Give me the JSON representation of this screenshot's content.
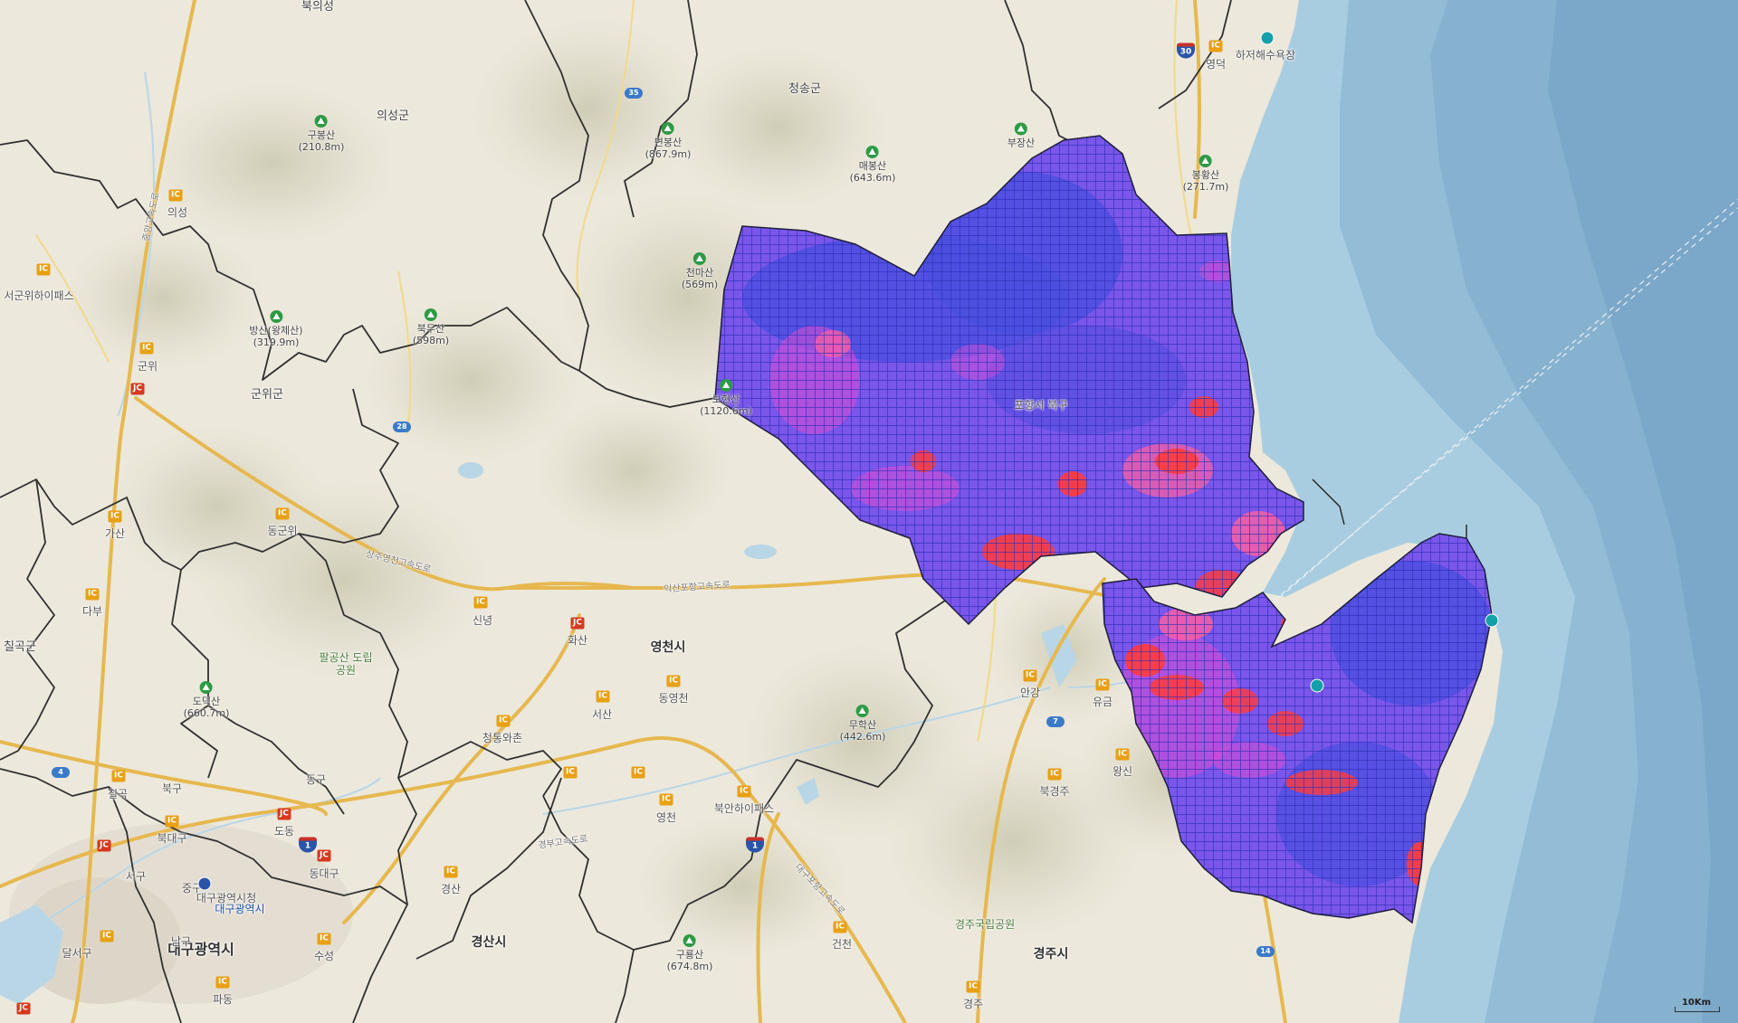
{
  "map": {
    "colors": {
      "land": "#ece8dc",
      "sea": "#8fb8d2",
      "sea_deep": "#7aa6c5",
      "boundary": "#2f2f2f",
      "highway": "#e6b84f",
      "overlay_base": "#7a56ea",
      "overlay_grid": "#2a2fb3",
      "hot": "#ff3b3b"
    },
    "regions": [
      {
        "name": "북의성",
        "type": "region"
      },
      {
        "name": "의성군",
        "type": "region"
      },
      {
        "name": "청송군",
        "type": "region"
      },
      {
        "name": "군위군",
        "type": "region"
      },
      {
        "name": "칠곡군",
        "type": "region"
      },
      {
        "name": "영천시",
        "type": "city"
      },
      {
        "name": "경산시",
        "type": "city"
      },
      {
        "name": "경주시",
        "type": "city"
      },
      {
        "name": "대구광역시",
        "type": "metro"
      },
      {
        "name": "동구",
        "type": "district"
      },
      {
        "name": "북구",
        "type": "district"
      },
      {
        "name": "서구",
        "type": "district"
      },
      {
        "name": "중구",
        "type": "district"
      },
      {
        "name": "남구",
        "type": "district"
      },
      {
        "name": "달서구",
        "type": "district"
      },
      {
        "name": "수성",
        "type": "district"
      },
      {
        "name": "대구광역시청",
        "type": "poi"
      },
      {
        "name": "대구광역시",
        "type": "poi"
      },
      {
        "name": "포항시 북구",
        "type": "district"
      },
      {
        "name": "영덕",
        "type": "town"
      },
      {
        "name": "안강",
        "type": "town"
      },
      {
        "name": "유금",
        "type": "town"
      },
      {
        "name": "건천",
        "type": "town"
      },
      {
        "name": "경주",
        "type": "town"
      },
      {
        "name": "동군위",
        "type": "town"
      },
      {
        "name": "가산",
        "type": "town"
      },
      {
        "name": "다부",
        "type": "town"
      },
      {
        "name": "칠곡",
        "type": "town"
      },
      {
        "name": "북대구",
        "type": "town"
      },
      {
        "name": "동대구",
        "type": "town"
      },
      {
        "name": "도동",
        "type": "town"
      },
      {
        "name": "군위",
        "type": "town"
      },
      {
        "name": "서군위하이패스",
        "type": "town"
      },
      {
        "name": "의성",
        "type": "town"
      },
      {
        "name": "신녕",
        "type": "town"
      },
      {
        "name": "화산",
        "type": "town"
      },
      {
        "name": "서산",
        "type": "town"
      },
      {
        "name": "동영천",
        "type": "town"
      },
      {
        "name": "청통와촌",
        "type": "town"
      },
      {
        "name": "영천",
        "type": "town"
      },
      {
        "name": "북안하이패스",
        "type": "town"
      },
      {
        "name": "경산",
        "type": "town"
      },
      {
        "name": "북경주",
        "type": "town"
      },
      {
        "name": "왕신",
        "type": "town"
      },
      {
        "name": "파동",
        "type": "town"
      },
      {
        "name": "하저해수욕장",
        "type": "poi"
      },
      {
        "name": "팔공산 도립공원",
        "type": "park"
      },
      {
        "name": "경주국립공원",
        "type": "park"
      }
    ],
    "peaks": [
      {
        "name": "구봉산",
        "elev": "(210.8m)"
      },
      {
        "name": "면봉산",
        "elev": "(867.9m)"
      },
      {
        "name": "매봉산",
        "elev": "(643.6m)"
      },
      {
        "name": "부장산",
        "elev": ""
      },
      {
        "name": "봉황산",
        "elev": "(271.7m)"
      },
      {
        "name": "천마산",
        "elev": "(569m)"
      },
      {
        "name": "북두산",
        "elev": "(598m)"
      },
      {
        "name": "방산(왕제산)",
        "elev": "(319.9m)"
      },
      {
        "name": "보현산",
        "elev": "(1120.6m)"
      },
      {
        "name": "도덕산",
        "elev": "(660.7m)"
      },
      {
        "name": "무학산",
        "elev": "(442.6m)"
      },
      {
        "name": "구룡산",
        "elev": "(674.8m)"
      }
    ],
    "highway_shields": [
      {
        "label": "30"
      },
      {
        "label": "1"
      },
      {
        "label": "1"
      }
    ],
    "national_routes": [
      {
        "label": "35"
      },
      {
        "label": "28"
      },
      {
        "label": "4"
      },
      {
        "label": "7"
      },
      {
        "label": "14"
      }
    ],
    "road_labels": [
      {
        "text": "상주영천고속도로"
      },
      {
        "text": "익산포항고속도로"
      },
      {
        "text": "경부고속도로"
      },
      {
        "text": "중앙고속도로"
      },
      {
        "text": "대구포항고속도로"
      }
    ],
    "interchange_label": "IC",
    "junction_label": "JC",
    "scale_label": "10Km"
  }
}
